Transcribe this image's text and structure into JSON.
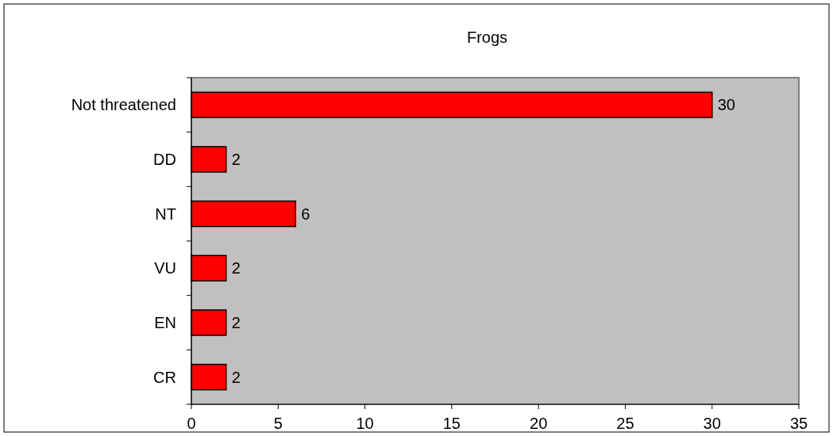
{
  "chart_data": {
    "type": "bar",
    "title": "Frogs",
    "orientation": "horizontal",
    "categories": [
      "Not threatened",
      "DD",
      "NT",
      "VU",
      "EN",
      "CR"
    ],
    "values": [
      30,
      2,
      6,
      2,
      2,
      2
    ],
    "color": "#ff0000",
    "xlim": [
      0,
      35
    ],
    "xticks": [
      0,
      5,
      10,
      15,
      20,
      25,
      30,
      35
    ],
    "data_labels": true,
    "grid": false
  }
}
